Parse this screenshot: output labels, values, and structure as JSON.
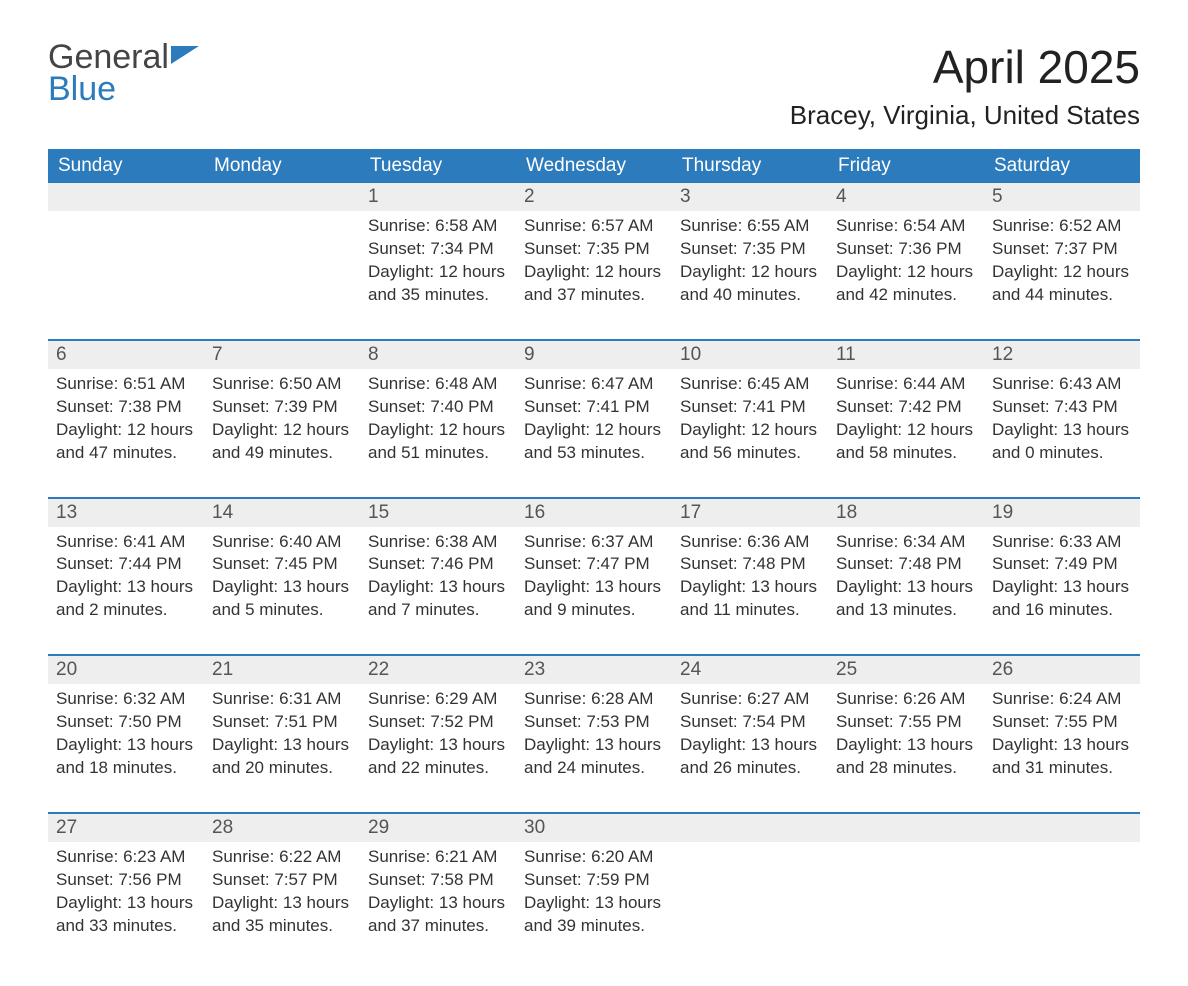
{
  "logo": {
    "word1": "General",
    "word2": "Blue"
  },
  "title": "April 2025",
  "location": "Bracey, Virginia, United States",
  "colors": {
    "header_bg": "#2b7bbd",
    "header_text": "#ffffff",
    "daynum_bg": "#eeeeee",
    "week_border": "#2b7bbd",
    "text": "#333333",
    "logo_blue": "#2b7bbd"
  },
  "fonts": {
    "title_size": 46,
    "location_size": 26,
    "dow_size": 19,
    "body_size": 17
  },
  "days_of_week": [
    "Sunday",
    "Monday",
    "Tuesday",
    "Wednesday",
    "Thursday",
    "Friday",
    "Saturday"
  ],
  "weeks": [
    [
      {
        "num": "",
        "sunrise": "",
        "sunset": "",
        "daylight1": "",
        "daylight2": ""
      },
      {
        "num": "",
        "sunrise": "",
        "sunset": "",
        "daylight1": "",
        "daylight2": ""
      },
      {
        "num": "1",
        "sunrise": "Sunrise: 6:58 AM",
        "sunset": "Sunset: 7:34 PM",
        "daylight1": "Daylight: 12 hours",
        "daylight2": "and 35 minutes."
      },
      {
        "num": "2",
        "sunrise": "Sunrise: 6:57 AM",
        "sunset": "Sunset: 7:35 PM",
        "daylight1": "Daylight: 12 hours",
        "daylight2": "and 37 minutes."
      },
      {
        "num": "3",
        "sunrise": "Sunrise: 6:55 AM",
        "sunset": "Sunset: 7:35 PM",
        "daylight1": "Daylight: 12 hours",
        "daylight2": "and 40 minutes."
      },
      {
        "num": "4",
        "sunrise": "Sunrise: 6:54 AM",
        "sunset": "Sunset: 7:36 PM",
        "daylight1": "Daylight: 12 hours",
        "daylight2": "and 42 minutes."
      },
      {
        "num": "5",
        "sunrise": "Sunrise: 6:52 AM",
        "sunset": "Sunset: 7:37 PM",
        "daylight1": "Daylight: 12 hours",
        "daylight2": "and 44 minutes."
      }
    ],
    [
      {
        "num": "6",
        "sunrise": "Sunrise: 6:51 AM",
        "sunset": "Sunset: 7:38 PM",
        "daylight1": "Daylight: 12 hours",
        "daylight2": "and 47 minutes."
      },
      {
        "num": "7",
        "sunrise": "Sunrise: 6:50 AM",
        "sunset": "Sunset: 7:39 PM",
        "daylight1": "Daylight: 12 hours",
        "daylight2": "and 49 minutes."
      },
      {
        "num": "8",
        "sunrise": "Sunrise: 6:48 AM",
        "sunset": "Sunset: 7:40 PM",
        "daylight1": "Daylight: 12 hours",
        "daylight2": "and 51 minutes."
      },
      {
        "num": "9",
        "sunrise": "Sunrise: 6:47 AM",
        "sunset": "Sunset: 7:41 PM",
        "daylight1": "Daylight: 12 hours",
        "daylight2": "and 53 minutes."
      },
      {
        "num": "10",
        "sunrise": "Sunrise: 6:45 AM",
        "sunset": "Sunset: 7:41 PM",
        "daylight1": "Daylight: 12 hours",
        "daylight2": "and 56 minutes."
      },
      {
        "num": "11",
        "sunrise": "Sunrise: 6:44 AM",
        "sunset": "Sunset: 7:42 PM",
        "daylight1": "Daylight: 12 hours",
        "daylight2": "and 58 minutes."
      },
      {
        "num": "12",
        "sunrise": "Sunrise: 6:43 AM",
        "sunset": "Sunset: 7:43 PM",
        "daylight1": "Daylight: 13 hours",
        "daylight2": "and 0 minutes."
      }
    ],
    [
      {
        "num": "13",
        "sunrise": "Sunrise: 6:41 AM",
        "sunset": "Sunset: 7:44 PM",
        "daylight1": "Daylight: 13 hours",
        "daylight2": "and 2 minutes."
      },
      {
        "num": "14",
        "sunrise": "Sunrise: 6:40 AM",
        "sunset": "Sunset: 7:45 PM",
        "daylight1": "Daylight: 13 hours",
        "daylight2": "and 5 minutes."
      },
      {
        "num": "15",
        "sunrise": "Sunrise: 6:38 AM",
        "sunset": "Sunset: 7:46 PM",
        "daylight1": "Daylight: 13 hours",
        "daylight2": "and 7 minutes."
      },
      {
        "num": "16",
        "sunrise": "Sunrise: 6:37 AM",
        "sunset": "Sunset: 7:47 PM",
        "daylight1": "Daylight: 13 hours",
        "daylight2": "and 9 minutes."
      },
      {
        "num": "17",
        "sunrise": "Sunrise: 6:36 AM",
        "sunset": "Sunset: 7:48 PM",
        "daylight1": "Daylight: 13 hours",
        "daylight2": "and 11 minutes."
      },
      {
        "num": "18",
        "sunrise": "Sunrise: 6:34 AM",
        "sunset": "Sunset: 7:48 PM",
        "daylight1": "Daylight: 13 hours",
        "daylight2": "and 13 minutes."
      },
      {
        "num": "19",
        "sunrise": "Sunrise: 6:33 AM",
        "sunset": "Sunset: 7:49 PM",
        "daylight1": "Daylight: 13 hours",
        "daylight2": "and 16 minutes."
      }
    ],
    [
      {
        "num": "20",
        "sunrise": "Sunrise: 6:32 AM",
        "sunset": "Sunset: 7:50 PM",
        "daylight1": "Daylight: 13 hours",
        "daylight2": "and 18 minutes."
      },
      {
        "num": "21",
        "sunrise": "Sunrise: 6:31 AM",
        "sunset": "Sunset: 7:51 PM",
        "daylight1": "Daylight: 13 hours",
        "daylight2": "and 20 minutes."
      },
      {
        "num": "22",
        "sunrise": "Sunrise: 6:29 AM",
        "sunset": "Sunset: 7:52 PM",
        "daylight1": "Daylight: 13 hours",
        "daylight2": "and 22 minutes."
      },
      {
        "num": "23",
        "sunrise": "Sunrise: 6:28 AM",
        "sunset": "Sunset: 7:53 PM",
        "daylight1": "Daylight: 13 hours",
        "daylight2": "and 24 minutes."
      },
      {
        "num": "24",
        "sunrise": "Sunrise: 6:27 AM",
        "sunset": "Sunset: 7:54 PM",
        "daylight1": "Daylight: 13 hours",
        "daylight2": "and 26 minutes."
      },
      {
        "num": "25",
        "sunrise": "Sunrise: 6:26 AM",
        "sunset": "Sunset: 7:55 PM",
        "daylight1": "Daylight: 13 hours",
        "daylight2": "and 28 minutes."
      },
      {
        "num": "26",
        "sunrise": "Sunrise: 6:24 AM",
        "sunset": "Sunset: 7:55 PM",
        "daylight1": "Daylight: 13 hours",
        "daylight2": "and 31 minutes."
      }
    ],
    [
      {
        "num": "27",
        "sunrise": "Sunrise: 6:23 AM",
        "sunset": "Sunset: 7:56 PM",
        "daylight1": "Daylight: 13 hours",
        "daylight2": "and 33 minutes."
      },
      {
        "num": "28",
        "sunrise": "Sunrise: 6:22 AM",
        "sunset": "Sunset: 7:57 PM",
        "daylight1": "Daylight: 13 hours",
        "daylight2": "and 35 minutes."
      },
      {
        "num": "29",
        "sunrise": "Sunrise: 6:21 AM",
        "sunset": "Sunset: 7:58 PM",
        "daylight1": "Daylight: 13 hours",
        "daylight2": "and 37 minutes."
      },
      {
        "num": "30",
        "sunrise": "Sunrise: 6:20 AM",
        "sunset": "Sunset: 7:59 PM",
        "daylight1": "Daylight: 13 hours",
        "daylight2": "and 39 minutes."
      },
      {
        "num": "",
        "sunrise": "",
        "sunset": "",
        "daylight1": "",
        "daylight2": ""
      },
      {
        "num": "",
        "sunrise": "",
        "sunset": "",
        "daylight1": "",
        "daylight2": ""
      },
      {
        "num": "",
        "sunrise": "",
        "sunset": "",
        "daylight1": "",
        "daylight2": ""
      }
    ]
  ]
}
